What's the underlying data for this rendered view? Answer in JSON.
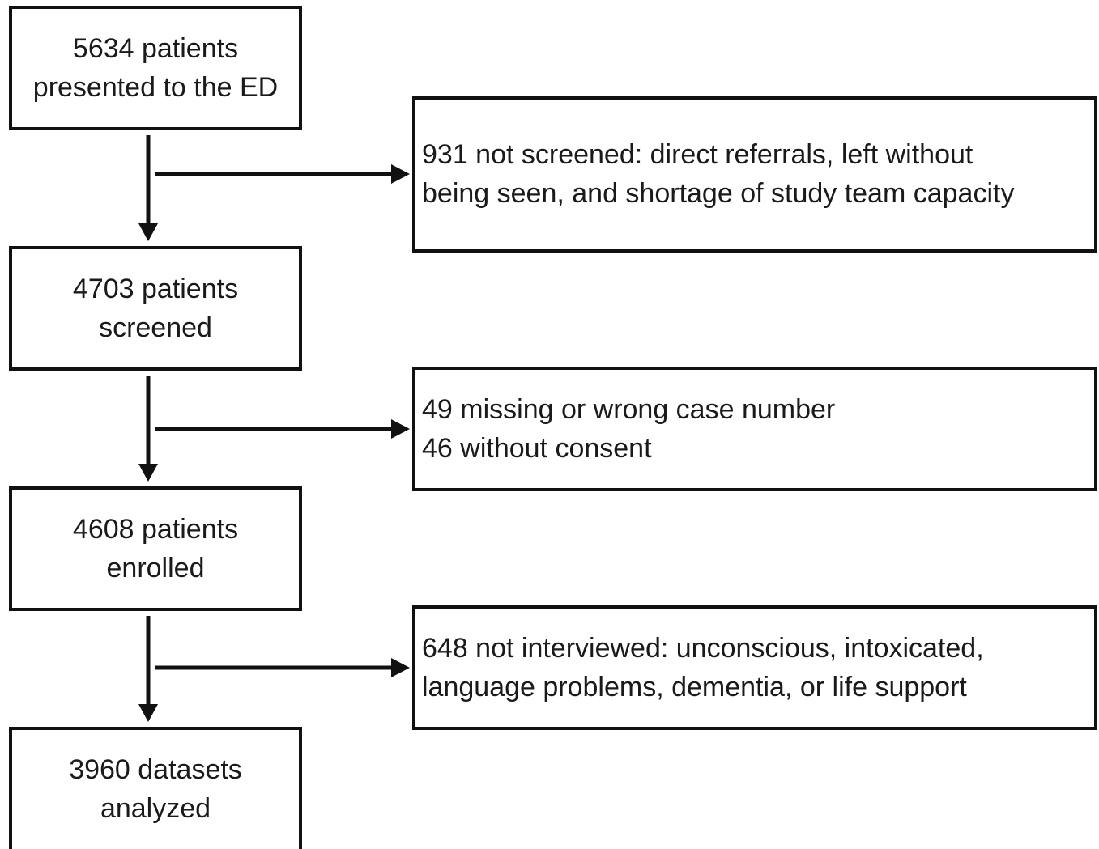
{
  "nodes": [
    {
      "lines": [
        "5634 patients",
        "presented to the ED"
      ]
    },
    {
      "lines": [
        "4703 patients",
        "screened"
      ]
    },
    {
      "lines": [
        "4608 patients",
        "enrolled"
      ]
    },
    {
      "lines": [
        "3960 datasets",
        "analyzed"
      ]
    }
  ],
  "exclusions": [
    {
      "lines": [
        "931 not screened: direct referrals, left without",
        "being seen, and shortage of study team capacity"
      ]
    },
    {
      "lines": [
        "49 missing or wrong case number",
        "46 without consent"
      ]
    },
    {
      "lines": [
        "648 not interviewed: unconscious, intoxicated,",
        "language problems, dementia, or life support"
      ]
    }
  ]
}
